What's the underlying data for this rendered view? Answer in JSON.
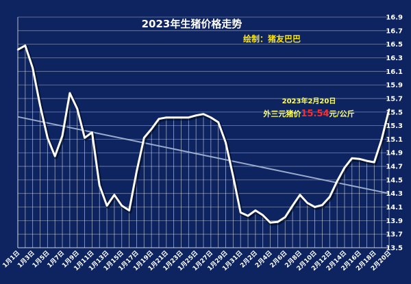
{
  "chart_data": {
    "type": "line",
    "title": "2023年生猪价格走势",
    "subtitle": "绘制：猪友巴巴",
    "annotation": {
      "date": "2023年2月20日",
      "prefix": "外三元猪价",
      "value": "15.54",
      "suffix": "元/公斤"
    },
    "ylim": [
      13.5,
      16.9
    ],
    "yticks": [
      "13.5",
      "13.7",
      "13.9",
      "14.1",
      "14.3",
      "14.5",
      "14.7",
      "14.9",
      "15.1",
      "15.3",
      "15.5",
      "15.7",
      "15.9",
      "16.1",
      "16.3",
      "16.5",
      "16.7",
      "16.9"
    ],
    "x": [
      "1月1日",
      "1月2日",
      "1月3日",
      "1月4日",
      "1月5日",
      "1月6日",
      "1月7日",
      "1月8日",
      "1月9日",
      "1月10日",
      "1月11日",
      "1月12日",
      "1月13日",
      "1月14日",
      "1月15日",
      "1月16日",
      "1月17日",
      "1月18日",
      "1月19日",
      "1月20日",
      "1月21日",
      "1月22日",
      "1月23日",
      "1月24日",
      "1月25日",
      "1月26日",
      "1月27日",
      "1月28日",
      "1月29日",
      "1月30日",
      "1月31日",
      "2月1日",
      "2月2日",
      "2月3日",
      "2月4日",
      "2月5日",
      "2月6日",
      "2月7日",
      "2月8日",
      "2月9日",
      "2月10日",
      "2月11日",
      "2月12日",
      "2月13日",
      "2月14日",
      "2月15日",
      "2月16日",
      "2月17日",
      "2月18日",
      "2月19日",
      "2月20日"
    ],
    "xtick_labels": [
      "1月1日",
      "1月3日",
      "1月5日",
      "1月7日",
      "1月9日",
      "1月11日",
      "1月13日",
      "1月15日",
      "1月17日",
      "1月19日",
      "1月21日",
      "1月23日",
      "1月25日",
      "1月27日",
      "1月29日",
      "1月31日",
      "2月2日",
      "2月4日",
      "2月6日",
      "2月8日",
      "2月10日",
      "2月12日",
      "2月14日",
      "2月16日",
      "2月18日",
      "2月20日"
    ],
    "series": [
      {
        "values": [
          16.42,
          16.48,
          16.15,
          15.6,
          15.12,
          14.85,
          15.15,
          15.78,
          15.55,
          15.12,
          15.2,
          14.42,
          14.12,
          14.28,
          14.12,
          14.05,
          14.62,
          15.12,
          15.25,
          15.4,
          15.42,
          15.42,
          15.42,
          15.42,
          15.45,
          15.47,
          15.42,
          15.35,
          15.05,
          14.55,
          14.02,
          13.97,
          14.05,
          13.98,
          13.87,
          13.88,
          13.95,
          14.12,
          14.28,
          14.16,
          14.1,
          14.13,
          14.25,
          14.48,
          14.68,
          14.82,
          14.81,
          14.78,
          14.76,
          15.1,
          15.54
        ]
      }
    ],
    "trendline": {
      "start": 15.43,
      "end": 14.3
    },
    "grid": true,
    "colors": {
      "background": "#0d2461",
      "line": "#ffffff",
      "trend": "#a9b9d6",
      "title_text": "#ffffff",
      "subtitle_text": "#ffe600",
      "annotation_text": "#ffff66",
      "annotation_value": "#ff2a2a",
      "axis_text": "#ffffff"
    }
  }
}
